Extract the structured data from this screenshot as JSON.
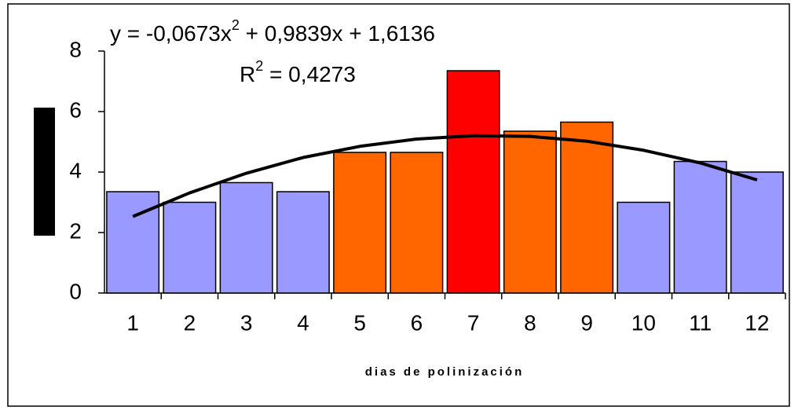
{
  "chart_data": {
    "type": "bar",
    "equation": [
      "y = -0,0673x",
      "2",
      " + 0,9839x + 1,6136"
    ],
    "r_squared": [
      "R",
      "2",
      " = 0,4273"
    ],
    "x_label": "dias de polinización",
    "categories": [
      "1",
      "2",
      "3",
      "4",
      "5",
      "6",
      "7",
      "8",
      "9",
      "10",
      "11",
      "12"
    ],
    "values": [
      3.35,
      3.0,
      3.65,
      3.35,
      4.65,
      4.65,
      7.35,
      5.35,
      5.65,
      3.0,
      4.35,
      4.0
    ],
    "colors": [
      "#9999ff",
      "#9999ff",
      "#9999ff",
      "#9999ff",
      "#ff6600",
      "#ff6600",
      "#ff0000",
      "#ff6600",
      "#ff6600",
      "#9999ff",
      "#9999ff",
      "#9999ff"
    ],
    "trendline": {
      "color": "#000000",
      "values": [
        2.53,
        3.31,
        3.96,
        4.48,
        4.85,
        5.09,
        5.2,
        5.18,
        5.02,
        4.72,
        4.3,
        3.74
      ]
    },
    "ylim": [
      0,
      8
    ],
    "yticks": [
      0,
      2,
      4,
      6,
      8
    ],
    "grid": false
  }
}
